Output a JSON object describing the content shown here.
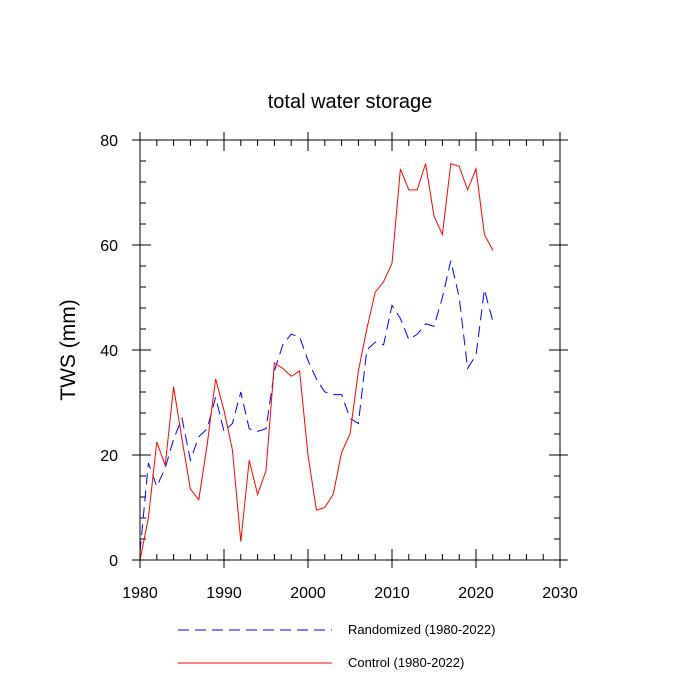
{
  "chart_data": {
    "type": "line",
    "title": "total water storage",
    "xlabel": "",
    "ylabel": "TWS  (mm)",
    "xlim": [
      1980,
      2030
    ],
    "ylim": [
      0,
      80
    ],
    "x_ticks": [
      1980,
      1990,
      2000,
      2010,
      2020,
      2030
    ],
    "y_ticks": [
      0,
      20,
      40,
      60,
      80
    ],
    "grid": false,
    "legend_position": "bottom",
    "series": [
      {
        "name": "Randomized (1980-2022)",
        "color": "#0000ff",
        "style": "dashed",
        "x": [
          1980,
          1981,
          1982,
          1983,
          1984,
          1985,
          1986,
          1987,
          1988,
          1989,
          1990,
          1991,
          1992,
          1993,
          1994,
          1995,
          1996,
          1997,
          1998,
          1999,
          2000,
          2001,
          2002,
          2003,
          2004,
          2005,
          2006,
          2007,
          2008,
          2009,
          2010,
          2011,
          2012,
          2013,
          2014,
          2015,
          2016,
          2017,
          2018,
          2019,
          2020,
          2021,
          2022
        ],
        "values": [
          1.5,
          18.5,
          14,
          17.5,
          23,
          27,
          19,
          23.5,
          25,
          31,
          24.5,
          26,
          32,
          25,
          24.5,
          25,
          36,
          41,
          43,
          42.5,
          38,
          34.5,
          32,
          31.5,
          31.5,
          27,
          26,
          40,
          41.5,
          41,
          48.5,
          46,
          42,
          43,
          45,
          44.5,
          50,
          57,
          50,
          36.5,
          39,
          51.5,
          45.5
        ]
      },
      {
        "name": "Control (1980-2022)",
        "color": "#ff0000",
        "style": "solid",
        "x": [
          1980,
          1981,
          1982,
          1983,
          1984,
          1985,
          1986,
          1987,
          1988,
          1989,
          1990,
          1991,
          1992,
          1993,
          1994,
          1995,
          1996,
          1997,
          1998,
          1999,
          2000,
          2001,
          2002,
          2003,
          2004,
          2005,
          2006,
          2007,
          2008,
          2009,
          2010,
          2011,
          2012,
          2013,
          2014,
          2015,
          2016,
          2017,
          2018,
          2019,
          2020,
          2021,
          2022
        ],
        "values": [
          0,
          8,
          22.5,
          18,
          33,
          23,
          13.5,
          11.5,
          22,
          34.5,
          28.5,
          21,
          3.5,
          19,
          12.5,
          17,
          37.5,
          36.5,
          35,
          36,
          20,
          9.5,
          10,
          12.5,
          20.5,
          24,
          36,
          44,
          51,
          53,
          56.5,
          74.5,
          70.5,
          70.5,
          75.5,
          65.5,
          62,
          75.5,
          75,
          70.5,
          74.5,
          62,
          59
        ]
      }
    ]
  }
}
